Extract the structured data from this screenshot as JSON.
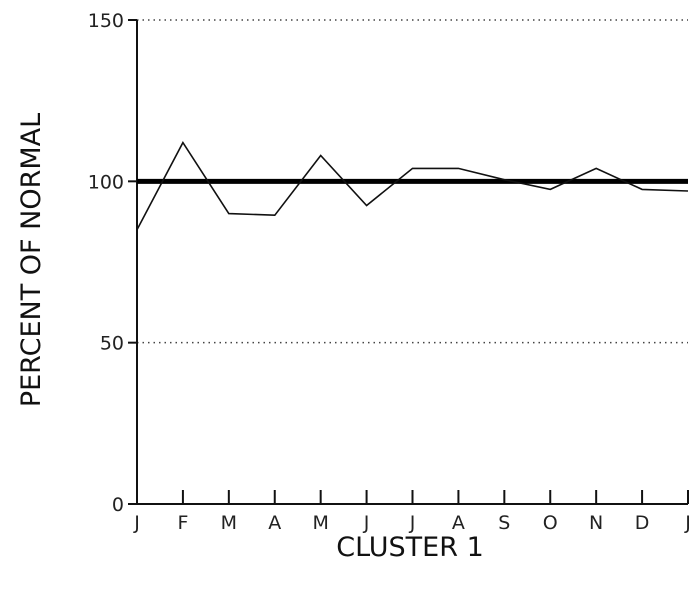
{
  "chart_data": {
    "type": "line",
    "xlabel": "CLUSTER 1",
    "ylabel": "PERCENT OF NORMAL",
    "ylim": [
      0,
      150
    ],
    "yticks": [
      0,
      50,
      100,
      150
    ],
    "grid": "dotted horizontal at 50 and 150",
    "categories": [
      "J",
      "F",
      "M",
      "A",
      "M",
      "J",
      "J",
      "A",
      "S",
      "O",
      "N",
      "D",
      "J"
    ],
    "series": [
      {
        "values": [
          85,
          112,
          90,
          89.5,
          108,
          92.5,
          104,
          104,
          100.5,
          97.5,
          104,
          97.5,
          97
        ]
      }
    ],
    "reference_line": 100
  },
  "colors": {
    "axis": "#111111",
    "series": "#111111",
    "reference": "#000000",
    "grid": "#444444"
  }
}
